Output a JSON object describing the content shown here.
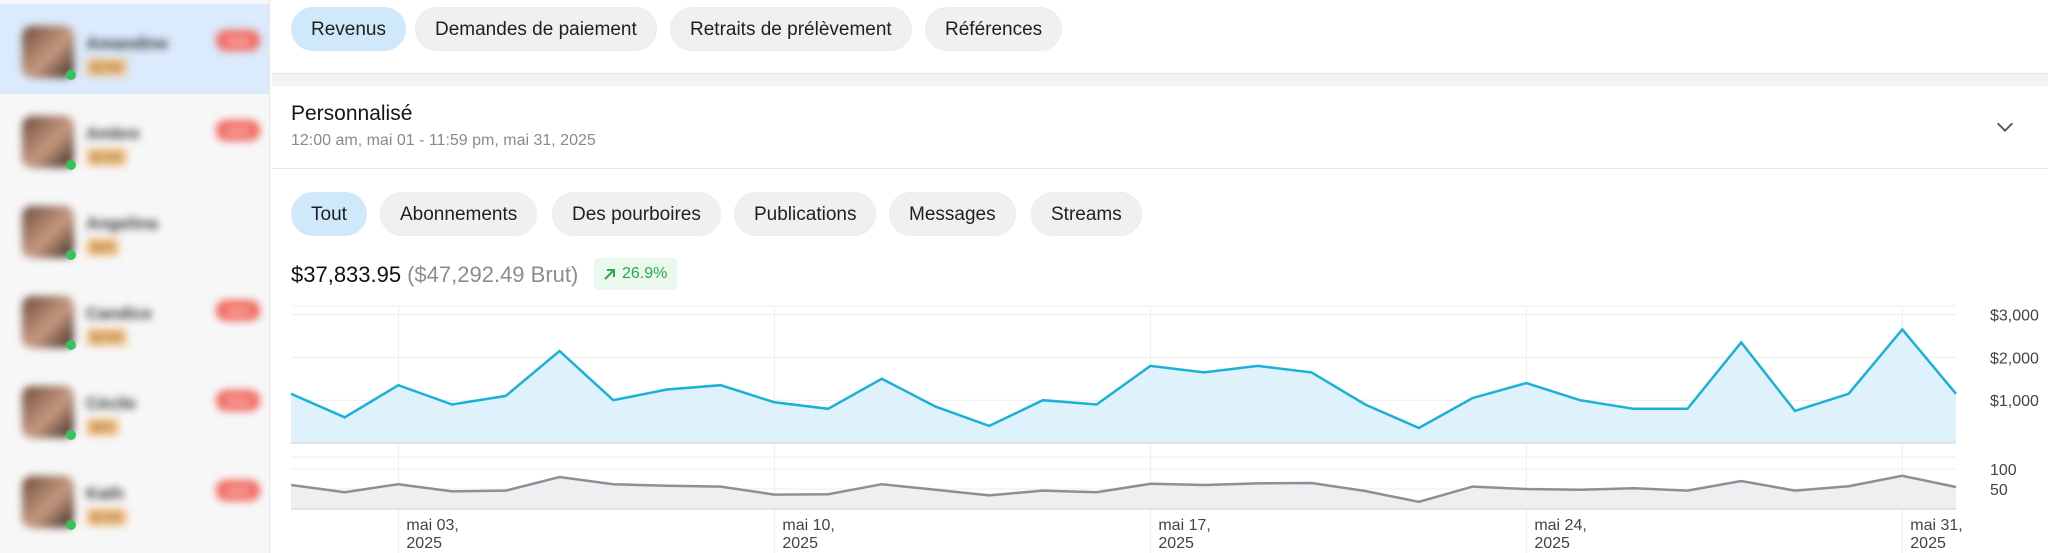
{
  "sidebar": {
    "users": [
      {
        "name": "Amandine",
        "price": "$299",
        "badge": "new",
        "active": true
      },
      {
        "name": "Ambre",
        "price": "$299",
        "badge": "new",
        "active": false
      },
      {
        "name": "Angelina",
        "price": "$65",
        "badge": "",
        "active": false
      },
      {
        "name": "Candice",
        "price": "$299",
        "badge": "new",
        "active": false
      },
      {
        "name": "Cécile",
        "price": "$65",
        "badge": "new",
        "active": false
      },
      {
        "name": "Kath",
        "price": "$299",
        "badge": "new",
        "active": false
      }
    ]
  },
  "top_tabs": [
    {
      "label": "Revenus",
      "active": true
    },
    {
      "label": "Demandes de paiement",
      "active": false
    },
    {
      "label": "Retraits de prélèvement",
      "active": false
    },
    {
      "label": "Références",
      "active": false
    }
  ],
  "period": {
    "title": "Personnalisé",
    "range": "12:00 am, mai 01 - 11:59 pm, mai 31, 2025"
  },
  "filter_tabs": [
    {
      "label": "Tout",
      "active": true
    },
    {
      "label": "Abonnements",
      "active": false
    },
    {
      "label": "Des pourboires",
      "active": false
    },
    {
      "label": "Publications",
      "active": false
    },
    {
      "label": "Messages",
      "active": false
    },
    {
      "label": "Streams",
      "active": false
    }
  ],
  "totals": {
    "net": "$37,833.95",
    "gross": "($47,292.49 Brut)",
    "trend": "26.9%"
  },
  "colors": {
    "accent": "#1ab0d8",
    "accent_fill": "#dff2fb",
    "trend_green": "#2aa84a",
    "secondary_line": "#8c9095"
  },
  "chart_data": [
    {
      "type": "area",
      "x_start": "2025-05-01",
      "x_end": "2025-05-31",
      "y_tick_labels": [
        "$1,000",
        "$2,000",
        "$3,000"
      ],
      "y_ticks": [
        1000,
        2000,
        3000
      ],
      "ylim": [
        0,
        3200
      ],
      "series": [
        {
          "values": [
            1150,
            600,
            1350,
            900,
            1100,
            2150,
            1000,
            1250,
            1350,
            950,
            800,
            1500,
            850,
            400,
            1000,
            900,
            1800,
            1650,
            1800,
            1650,
            900,
            350,
            1050,
            1400,
            1000,
            800,
            800,
            2350,
            750,
            1150,
            2650,
            1150
          ]
        }
      ],
      "x_tick_labels": [
        {
          "day": 3,
          "line1": "mai 03,",
          "line2": "2025"
        },
        {
          "day": 10,
          "line1": "mai 10,",
          "line2": "2025"
        },
        {
          "day": 17,
          "line1": "mai 17,",
          "line2": "2025"
        },
        {
          "day": 24,
          "line1": "mai 24,",
          "line2": "2025"
        },
        {
          "day": 31,
          "line1": "mai 31,",
          "line2": "2025"
        }
      ]
    },
    {
      "type": "area",
      "y_tick_labels": [
        "50",
        "100"
      ],
      "y_ticks": [
        50,
        100
      ],
      "ylim": [
        0,
        130
      ],
      "series": [
        {
          "values": [
            60,
            42,
            62,
            44,
            46,
            80,
            62,
            58,
            56,
            36,
            37,
            62,
            48,
            34,
            46,
            42,
            63,
            60,
            64,
            65,
            45,
            18,
            56,
            50,
            48,
            52,
            46,
            70,
            46,
            57,
            83,
            55
          ]
        }
      ]
    }
  ]
}
